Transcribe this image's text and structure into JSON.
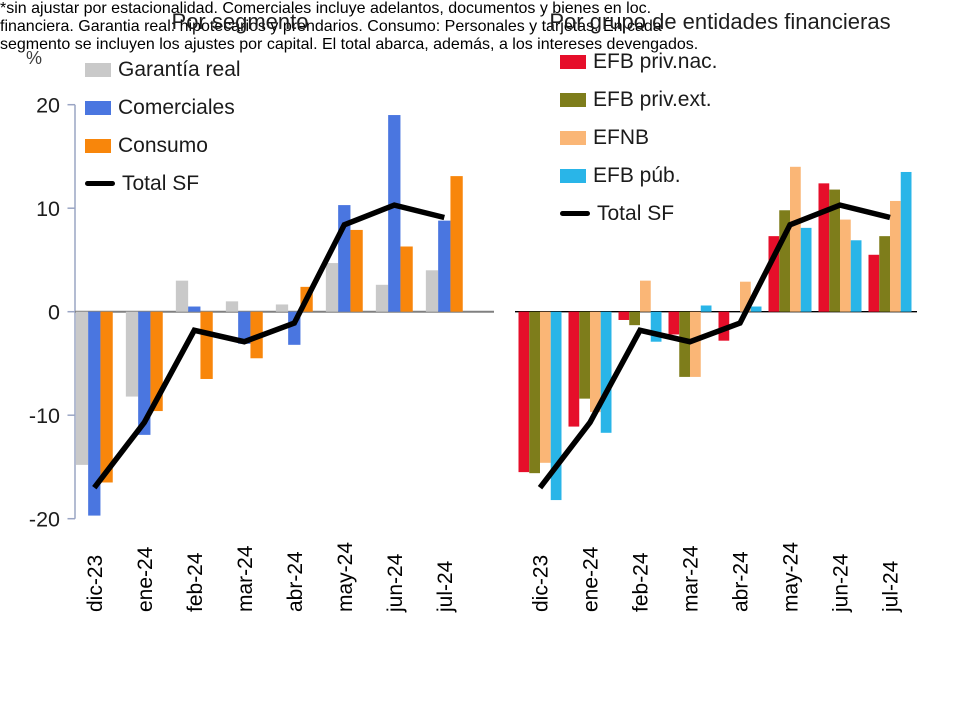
{
  "footnote_lines": [
    "*sin ajustar por estacionalidad. Comerciales incluye adelantos, documentos y bienes en loc.",
    "financiera. Garantia real: hipotecarios y prendarios. Consumo: Personales y tarjetas. En cada",
    "segmento se incluyen los ajustes por capital. El total abarca, además, a los intereses devengados."
  ],
  "chart_data": [
    {
      "type": "bar",
      "title": "Por segmento",
      "ylabel": "%",
      "ylim": [
        -20,
        20
      ],
      "yticks": [
        20,
        10,
        0,
        -10,
        -20
      ],
      "grid": false,
      "legend_position": "top-left-inside",
      "categories": [
        "dic-23",
        "ene-24",
        "feb-24",
        "mar-24",
        "abr-24",
        "may-24",
        "jun-24",
        "jul-24"
      ],
      "series": [
        {
          "name": "Garantía real",
          "color": "#c9c9c9",
          "values": [
            -14.8,
            -8.2,
            3.0,
            1.0,
            0.7,
            4.7,
            2.6,
            4.0
          ]
        },
        {
          "name": "Comerciales",
          "color": "#4a76e0",
          "values": [
            -19.7,
            -11.9,
            0.5,
            -3.1,
            -3.2,
            10.3,
            19.0,
            8.8
          ]
        },
        {
          "name": "Consumo",
          "color": "#f8860b",
          "values": [
            -16.5,
            -9.6,
            -6.5,
            -4.5,
            2.4,
            7.9,
            6.3,
            13.1
          ]
        }
      ],
      "line_series": {
        "name": "Total SF",
        "color": "#000000",
        "values": [
          -17.0,
          -10.7,
          -1.8,
          -2.9,
          -1.1,
          8.4,
          10.3,
          9.1
        ]
      }
    },
    {
      "type": "bar",
      "title": "Por grupo de entidades financieras",
      "ylabel": "%",
      "ylim": [
        -20,
        20
      ],
      "yticks": [
        20,
        10,
        0,
        -10,
        -20
      ],
      "grid": false,
      "legend_position": "top-left-inside",
      "categories": [
        "dic-23",
        "ene-24",
        "feb-24",
        "mar-24",
        "abr-24",
        "may-24",
        "jun-24",
        "jul-24"
      ],
      "series": [
        {
          "name": "EFB priv.nac.",
          "color": "#e60e2a",
          "values": [
            -15.5,
            -11.1,
            -0.8,
            -2.2,
            -2.8,
            7.3,
            12.4,
            5.5
          ]
        },
        {
          "name": "EFB priv.ext.",
          "color": "#7e7d1b",
          "values": [
            -15.6,
            -8.4,
            -1.3,
            -6.3,
            0,
            9.8,
            11.8,
            7.3
          ]
        },
        {
          "name": "EFNB",
          "color": "#fab676",
          "values": [
            -14.6,
            -9.7,
            3.0,
            -6.3,
            2.9,
            14.0,
            8.9,
            10.7
          ]
        },
        {
          "name": "EFB púb.",
          "color": "#29b5e8",
          "values": [
            -18.2,
            -11.7,
            -2.9,
            0.6,
            0.5,
            8.1,
            6.9,
            13.5
          ]
        }
      ],
      "line_series": {
        "name": "Total SF",
        "color": "#000000",
        "values": [
          -17.0,
          -10.7,
          -1.8,
          -2.9,
          -1.1,
          8.4,
          10.3,
          9.1
        ]
      }
    }
  ]
}
